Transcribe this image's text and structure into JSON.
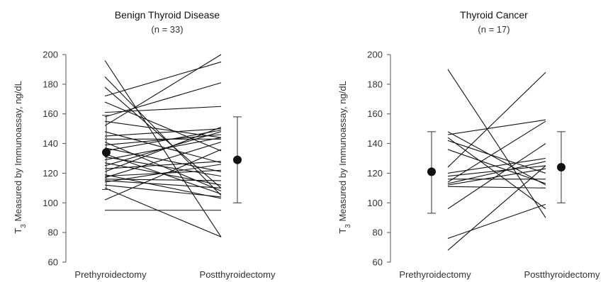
{
  "chart_data": [
    {
      "type": "line",
      "title": "Benign Thyroid Disease",
      "subtitle": "(n = 33)",
      "ylabel_sub": "3",
      "ylabel_prefix": "T",
      "ylabel_rest": " Measured by Immunoassay, ng/dL",
      "ylim": [
        60,
        200
      ],
      "yticks": [
        "60",
        "80",
        "100",
        "120",
        "140",
        "160",
        "180",
        "200"
      ],
      "categories": [
        "Prethyroidectomy",
        "Postthyroidectomy"
      ],
      "pairs": [
        [
          196,
          77
        ],
        [
          185,
          105
        ],
        [
          178,
          110
        ],
        [
          172,
          195
        ],
        [
          168,
          135
        ],
        [
          161,
          165
        ],
        [
          158,
          181
        ],
        [
          155,
          144
        ],
        [
          152,
          200
        ],
        [
          148,
          127
        ],
        [
          145,
          150
        ],
        [
          143,
          143
        ],
        [
          141,
          108
        ],
        [
          139,
          146
        ],
        [
          137,
          121
        ],
        [
          135,
          149
        ],
        [
          133,
          106
        ],
        [
          131,
          118
        ],
        [
          129,
          144
        ],
        [
          127,
          112
        ],
        [
          125,
          148
        ],
        [
          123,
          128
        ],
        [
          121,
          151
        ],
        [
          119,
          103
        ],
        [
          118,
          122
        ],
        [
          117,
          141
        ],
        [
          116,
          115
        ],
        [
          115,
          110
        ],
        [
          114,
          126
        ],
        [
          112,
          104
        ],
        [
          110,
          77
        ],
        [
          102,
          136
        ],
        [
          95,
          95
        ]
      ],
      "summary": [
        {
          "mean": 134,
          "low": 109,
          "high": 159
        },
        {
          "mean": 129,
          "low": 100,
          "high": 158
        }
      ]
    },
    {
      "type": "line",
      "title": "Thyroid Cancer",
      "subtitle": "(n = 17)",
      "ylabel_sub": "3",
      "ylabel_prefix": "T",
      "ylabel_rest": " Measured by Immunoassay, ng/dL",
      "ylim": [
        60,
        200
      ],
      "yticks": [
        "60",
        "80",
        "100",
        "120",
        "140",
        "160",
        "180",
        "200"
      ],
      "categories": [
        "Prethyroidectomy",
        "Postthyroidectomy"
      ],
      "pairs": [
        [
          190,
          90
        ],
        [
          148,
          112
        ],
        [
          146,
          156
        ],
        [
          144,
          96
        ],
        [
          142,
          120
        ],
        [
          136,
          113
        ],
        [
          124,
          188
        ],
        [
          120,
          130
        ],
        [
          118,
          125
        ],
        [
          116,
          116
        ],
        [
          114,
          155
        ],
        [
          113,
          128
        ],
        [
          112,
          123
        ],
        [
          111,
          110
        ],
        [
          96,
          140
        ],
        [
          76,
          99
        ],
        [
          68,
          125
        ]
      ],
      "summary": [
        {
          "mean": 121,
          "low": 93,
          "high": 148
        },
        {
          "mean": 124,
          "low": 100,
          "high": 148
        }
      ]
    }
  ]
}
